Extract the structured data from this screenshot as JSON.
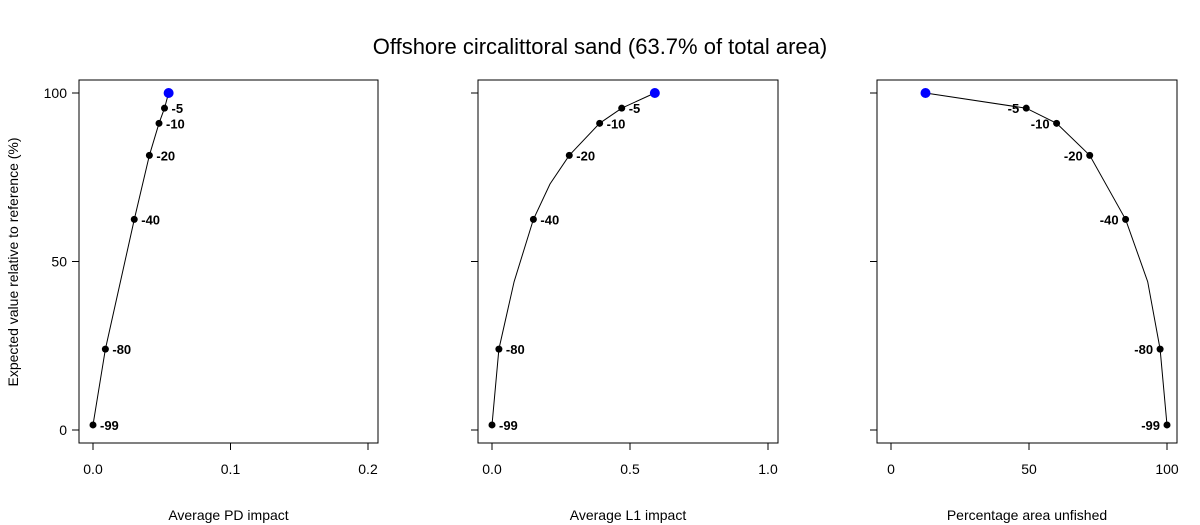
{
  "title": "Offshore circalittoral sand (63.7% of total area)",
  "ylabel": "Expected value relative to reference (%)",
  "colors": {
    "point": "#000000",
    "highlight": "#0000ff",
    "line": "#000000"
  },
  "chart_data": [
    {
      "type": "line",
      "xlabel": "Average PD impact",
      "ylabel": "Expected value relative to reference (%)",
      "xlim": [
        0,
        0.2
      ],
      "ylim": [
        0,
        100
      ],
      "xticks": [
        0.0,
        0.1,
        0.2
      ],
      "xtick_labels": [
        "0.0",
        "0.1",
        "0.2"
      ],
      "yticks": [
        0,
        50,
        100
      ],
      "ytick_labels": [
        "0",
        "50",
        "100"
      ],
      "label_side": "right",
      "reference_point": {
        "x": 0.055,
        "y": 100
      },
      "curve": [
        [
          0.0,
          1.5
        ],
        [
          0.009,
          24
        ],
        [
          0.03,
          62.5
        ],
        [
          0.041,
          81.5
        ],
        [
          0.048,
          91
        ],
        [
          0.052,
          95.5
        ],
        [
          0.055,
          100
        ]
      ],
      "points": [
        {
          "label": "-5",
          "x": 0.052,
          "y": 95.5
        },
        {
          "label": "-10",
          "x": 0.048,
          "y": 91
        },
        {
          "label": "-20",
          "x": 0.041,
          "y": 81.5
        },
        {
          "label": "-40",
          "x": 0.03,
          "y": 62.5
        },
        {
          "label": "-80",
          "x": 0.009,
          "y": 24
        },
        {
          "label": "-99",
          "x": 0.0,
          "y": 1.5
        }
      ]
    },
    {
      "type": "line",
      "xlabel": "Average L1 impact",
      "xlim": [
        0,
        1.0
      ],
      "ylim": [
        0,
        100
      ],
      "xticks": [
        0.0,
        0.5,
        1.0
      ],
      "xtick_labels": [
        "0.0",
        "0.5",
        "1.0"
      ],
      "yticks": [
        0,
        50,
        100
      ],
      "ytick_labels": [
        "",
        "",
        ""
      ],
      "label_side": "right",
      "reference_point": {
        "x": 0.59,
        "y": 100
      },
      "curve": [
        [
          0.0,
          1.5
        ],
        [
          0.025,
          24
        ],
        [
          0.08,
          44
        ],
        [
          0.15,
          62.5
        ],
        [
          0.21,
          73
        ],
        [
          0.28,
          81.5
        ],
        [
          0.39,
          91
        ],
        [
          0.47,
          95.5
        ],
        [
          0.59,
          100
        ]
      ],
      "points": [
        {
          "label": "-5",
          "x": 0.47,
          "y": 95.5
        },
        {
          "label": "-10",
          "x": 0.39,
          "y": 91
        },
        {
          "label": "-20",
          "x": 0.28,
          "y": 81.5
        },
        {
          "label": "-40",
          "x": 0.15,
          "y": 62.5
        },
        {
          "label": "-80",
          "x": 0.025,
          "y": 24
        },
        {
          "label": "-99",
          "x": 0.0,
          "y": 1.5
        }
      ]
    },
    {
      "type": "line",
      "xlabel": "Percentage area unfished",
      "xlim": [
        0,
        100
      ],
      "ylim": [
        0,
        100
      ],
      "xticks": [
        0,
        50,
        100
      ],
      "xtick_labels": [
        "0",
        "50",
        "100"
      ],
      "yticks": [
        0,
        50,
        100
      ],
      "ytick_labels": [
        "",
        "",
        ""
      ],
      "label_side": "left",
      "reference_point": {
        "x": 12.5,
        "y": 100
      },
      "curve": [
        [
          12.5,
          100
        ],
        [
          49,
          95.5
        ],
        [
          60,
          91
        ],
        [
          72,
          81.5
        ],
        [
          85,
          62.5
        ],
        [
          93,
          44
        ],
        [
          97.5,
          24
        ],
        [
          100,
          1.5
        ]
      ],
      "points": [
        {
          "label": "-5",
          "x": 49,
          "y": 95.5
        },
        {
          "label": "-10",
          "x": 60,
          "y": 91
        },
        {
          "label": "-20",
          "x": 72,
          "y": 81.5
        },
        {
          "label": "-40",
          "x": 85,
          "y": 62.5
        },
        {
          "label": "-80",
          "x": 97.5,
          "y": 24
        },
        {
          "label": "-99",
          "x": 100,
          "y": 1.5
        }
      ]
    }
  ]
}
